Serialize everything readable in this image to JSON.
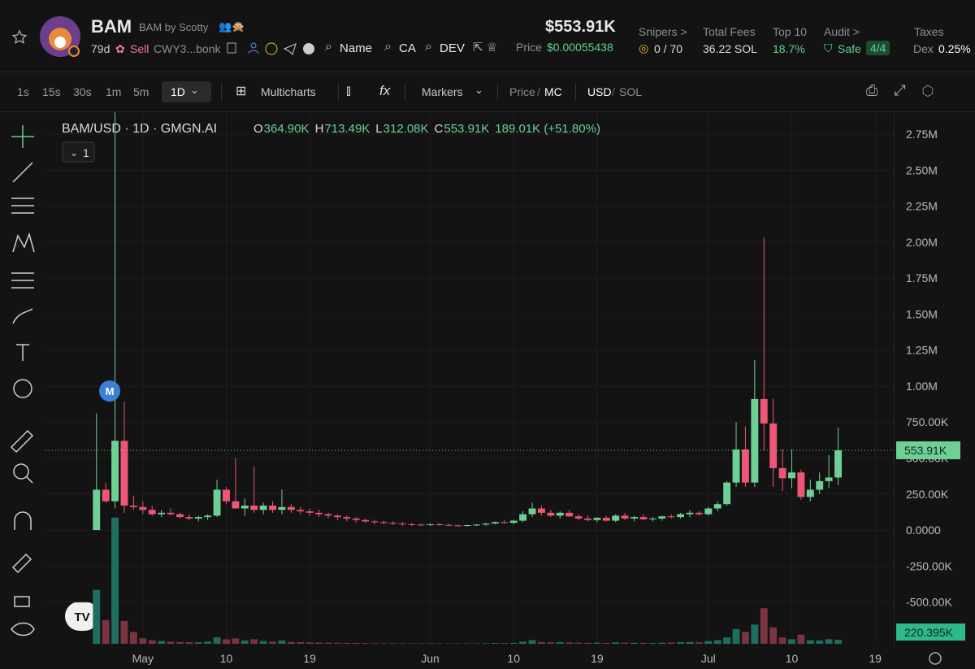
{
  "header": {
    "symbol": "BAM",
    "token_name": "BAM by Scotty",
    "age": "79d",
    "sell": "Sell",
    "address": "CWY3...bonk",
    "links": [
      "Name",
      "CA",
      "DEV"
    ],
    "market_cap": "$553.91K",
    "price_label": "Price",
    "price": "$0.00055438",
    "stats": [
      {
        "label": "Snipers >",
        "value": "0 / 70"
      },
      {
        "label": "Total Fees",
        "value": "36.22 SOL"
      },
      {
        "label": "Top 10",
        "value": "18.7%"
      },
      {
        "label": "Audit >",
        "value": "Safe",
        "extra": "4/4"
      },
      {
        "label": "Taxes",
        "value": "Dex",
        "extra": "0.25%"
      }
    ]
  },
  "toolbar": {
    "intervals": [
      "1s",
      "15s",
      "30s",
      "1m",
      "5m",
      "1D"
    ],
    "multicharts": "Multicharts",
    "markers": "Markers",
    "price": "Price",
    "mc": "MC",
    "usd": "USD",
    "sol": "SOL"
  },
  "chart_data": {
    "type": "candlestick",
    "title": "BAM/USD · 1D · GMGN.AI",
    "legend": {
      "o_label": "O",
      "o": "364.90K",
      "h_label": "H",
      "h": "713.49K",
      "l_label": "L",
      "l": "312.08K",
      "c_label": "C",
      "c": "553.91K",
      "change": "189.01K (+51.80%)"
    },
    "indicator_count": "1",
    "marker": "M",
    "ylim": [
      -790,
      2908
    ],
    "yticks": [
      {
        "value": -500,
        "label": "-500.00K"
      },
      {
        "value": -250,
        "label": "-250.00K"
      },
      {
        "value": 0,
        "label": "0.0000"
      },
      {
        "value": 250,
        "label": "250.00K"
      },
      {
        "value": 500,
        "label": "500.00K"
      },
      {
        "value": 750,
        "label": "750.00K"
      },
      {
        "value": 1000,
        "label": "1.00M"
      },
      {
        "value": 1250,
        "label": "1.25M"
      },
      {
        "value": 1500,
        "label": "1.50M"
      },
      {
        "value": 1750,
        "label": "1.75M"
      },
      {
        "value": 2000,
        "label": "2.00M"
      },
      {
        "value": 2250,
        "label": "2.25M"
      },
      {
        "value": 2500,
        "label": "2.50M"
      },
      {
        "value": 2750,
        "label": "2.75M"
      }
    ],
    "xticks": [
      {
        "value": 5,
        "label": "May"
      },
      {
        "value": 14,
        "label": "10"
      },
      {
        "value": 23,
        "label": "19"
      },
      {
        "value": 36,
        "label": "Jun"
      },
      {
        "value": 45,
        "label": "10"
      },
      {
        "value": 54,
        "label": "19"
      },
      {
        "value": 66,
        "label": "Jul"
      },
      {
        "value": 75,
        "label": "10"
      },
      {
        "value": 84,
        "label": "19"
      }
    ],
    "xlim": [
      -5.5,
      86
    ],
    "candles": [
      [
        0,
        810,
        0,
        280
      ],
      [
        280,
        330,
        190,
        200
      ],
      [
        200,
        2900,
        150,
        620
      ],
      [
        620,
        890,
        120,
        170
      ],
      [
        170,
        240,
        140,
        160
      ],
      [
        160,
        200,
        110,
        140
      ],
      [
        140,
        170,
        100,
        110
      ],
      [
        110,
        140,
        90,
        120
      ],
      [
        120,
        150,
        100,
        110
      ],
      [
        110,
        120,
        80,
        90
      ],
      [
        90,
        110,
        70,
        80
      ],
      [
        80,
        100,
        60,
        90
      ],
      [
        90,
        110,
        70,
        100
      ],
      [
        100,
        350,
        90,
        280
      ],
      [
        280,
        300,
        180,
        200
      ],
      [
        200,
        500,
        150,
        150
      ],
      [
        150,
        220,
        100,
        170
      ],
      [
        170,
        440,
        120,
        140
      ],
      [
        140,
        190,
        110,
        170
      ],
      [
        170,
        200,
        120,
        140
      ],
      [
        140,
        280,
        110,
        160
      ],
      [
        160,
        180,
        120,
        140
      ],
      [
        140,
        160,
        110,
        130
      ],
      [
        130,
        150,
        100,
        120
      ],
      [
        120,
        140,
        90,
        110
      ],
      [
        110,
        120,
        80,
        100
      ],
      [
        100,
        110,
        70,
        90
      ],
      [
        90,
        100,
        60,
        80
      ],
      [
        80,
        90,
        50,
        70
      ],
      [
        70,
        80,
        50,
        60
      ],
      [
        60,
        70,
        40,
        55
      ],
      [
        55,
        65,
        40,
        50
      ],
      [
        50,
        60,
        35,
        45
      ],
      [
        45,
        55,
        30,
        40
      ],
      [
        40,
        50,
        30,
        38
      ],
      [
        38,
        45,
        30,
        35
      ],
      [
        35,
        45,
        28,
        40
      ],
      [
        40,
        48,
        30,
        36
      ],
      [
        36,
        42,
        28,
        32
      ],
      [
        32,
        38,
        25,
        30
      ],
      [
        30,
        36,
        24,
        34
      ],
      [
        34,
        40,
        28,
        38
      ],
      [
        38,
        50,
        30,
        45
      ],
      [
        45,
        60,
        40,
        55
      ],
      [
        55,
        70,
        45,
        50
      ],
      [
        50,
        70,
        40,
        65
      ],
      [
        65,
        130,
        55,
        110
      ],
      [
        110,
        190,
        90,
        150
      ],
      [
        150,
        170,
        100,
        120
      ],
      [
        120,
        140,
        90,
        100
      ],
      [
        100,
        130,
        80,
        120
      ],
      [
        120,
        140,
        90,
        95
      ],
      [
        95,
        110,
        70,
        80
      ],
      [
        80,
        100,
        60,
        70
      ],
      [
        70,
        90,
        55,
        85
      ],
      [
        85,
        100,
        60,
        65
      ],
      [
        65,
        110,
        55,
        100
      ],
      [
        100,
        120,
        70,
        80
      ],
      [
        80,
        100,
        60,
        90
      ],
      [
        90,
        110,
        70,
        75
      ],
      [
        75,
        90,
        60,
        80
      ],
      [
        80,
        100,
        65,
        95
      ],
      [
        95,
        110,
        80,
        90
      ],
      [
        90,
        120,
        80,
        110
      ],
      [
        110,
        140,
        90,
        120
      ],
      [
        120,
        130,
        100,
        110
      ],
      [
        110,
        160,
        100,
        150
      ],
      [
        150,
        200,
        130,
        180
      ],
      [
        180,
        340,
        170,
        330
      ],
      [
        330,
        750,
        300,
        560
      ],
      [
        560,
        720,
        300,
        330
      ],
      [
        330,
        1180,
        300,
        910
      ],
      [
        910,
        2030,
        550,
        740
      ],
      [
        740,
        910,
        300,
        430
      ],
      [
        430,
        560,
        270,
        360
      ],
      [
        360,
        560,
        290,
        400
      ],
      [
        400,
        420,
        210,
        230
      ],
      [
        230,
        350,
        200,
        280
      ],
      [
        280,
        400,
        250,
        340
      ],
      [
        340,
        520,
        290,
        364.9
      ],
      [
        364.9,
        713.49,
        312.08,
        553.91
      ]
    ],
    "volumes": [
      2950,
      1300,
      6900,
      1250,
      650,
      300,
      200,
      150,
      120,
      100,
      90,
      80,
      120,
      350,
      250,
      300,
      180,
      250,
      150,
      120,
      180,
      100,
      90,
      80,
      70,
      60,
      55,
      50,
      45,
      40,
      35,
      30,
      30,
      28,
      25,
      25,
      22,
      25,
      20,
      20,
      22,
      25,
      30,
      40,
      35,
      50,
      120,
      200,
      100,
      80,
      90,
      70,
      60,
      50,
      60,
      50,
      80,
      60,
      55,
      50,
      45,
      60,
      70,
      90,
      100,
      80,
      150,
      200,
      350,
      800,
      650,
      1050,
      1950,
      900,
      350,
      250,
      500,
      200,
      180,
      250,
      220.395
    ],
    "volume_ylim": [
      0,
      8000
    ],
    "current_price": {
      "value": 553.91,
      "label": "553.91K"
    },
    "volume_marker": {
      "value": 220.395,
      "label": "220.395K"
    },
    "up_color": "#6fd095",
    "down_color": "#ee5577",
    "up_volume_color": "#1e6e60",
    "down_volume_color": "#7a3340"
  }
}
